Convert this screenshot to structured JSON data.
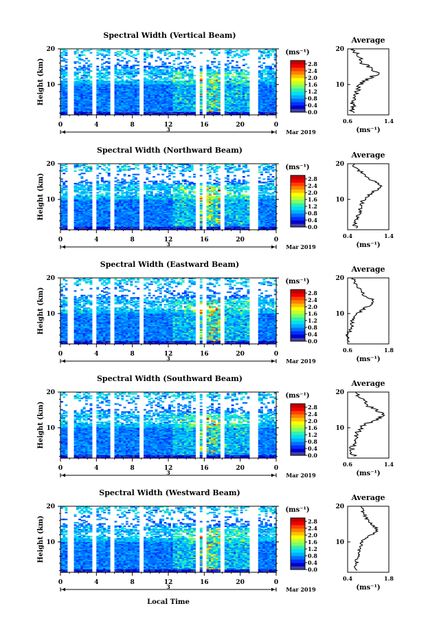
{
  "figure": {
    "xlabel": "Local Time",
    "month_label": "Mar 2019",
    "day_label": "3",
    "xticks": [
      "0",
      "4",
      "8",
      "12",
      "16",
      "20",
      "0"
    ],
    "ylabel": "Height (km)",
    "yticks": [
      "20",
      "10"
    ],
    "colorbar": {
      "unit": "(ms⁻¹)",
      "ticks": [
        "2.8",
        "2.4",
        "2.0",
        "1.6",
        "1.2",
        "0.8",
        "0.4",
        "0.0"
      ],
      "colors": [
        "#4040a0",
        "#0000c8",
        "#0030ff",
        "#0070ff",
        "#00b0ff",
        "#00e0f0",
        "#30f0b0",
        "#80ff60",
        "#c0ff30",
        "#ffff00",
        "#ffc000",
        "#ff8000",
        "#ff4000",
        "#f00000",
        "#c00000"
      ]
    },
    "average_title": "Average",
    "average_xlabel": "(ms⁻¹)",
    "average_yticks": [
      "20",
      "10"
    ]
  },
  "chart_data": [
    {
      "type": "heatmap",
      "title": "Spectral Width (Vertical Beam)",
      "xlabel": "Local Time",
      "ylabel": "Height (km)",
      "ylim": [
        1.5,
        20
      ],
      "colorbar_range": [
        0.0,
        3.0
      ],
      "average_profile": {
        "xticks": [
          "0.6",
          "1.4"
        ],
        "xlim": [
          0.6,
          1.4
        ],
        "heights": [
          2,
          3,
          4,
          5,
          6,
          7,
          8,
          9,
          10,
          11,
          12,
          13,
          14,
          15,
          16,
          17,
          18,
          19,
          20
        ],
        "values": [
          0.7,
          0.68,
          0.72,
          0.7,
          0.75,
          0.72,
          0.78,
          0.8,
          0.85,
          0.9,
          1.05,
          1.2,
          1.1,
          1.0,
          0.9,
          0.85,
          0.8,
          0.75,
          0.72
        ]
      }
    },
    {
      "type": "heatmap",
      "title": "Spectral Width (Northward Beam)",
      "xlabel": "Local Time",
      "ylabel": "Height (km)",
      "ylim": [
        1.5,
        20
      ],
      "colorbar_range": [
        0.0,
        3.0
      ],
      "average_profile": {
        "xticks": [
          "0.4",
          "1.4"
        ],
        "xlim": [
          0.4,
          1.4
        ],
        "heights": [
          2,
          3,
          4,
          5,
          6,
          7,
          8,
          9,
          10,
          11,
          12,
          13,
          14,
          15,
          16,
          17,
          18,
          19,
          20
        ],
        "values": [
          0.6,
          0.58,
          0.62,
          0.65,
          0.68,
          0.7,
          0.72,
          0.75,
          0.8,
          0.9,
          1.0,
          1.15,
          1.2,
          1.05,
          0.9,
          0.8,
          0.7,
          0.6,
          0.55
        ]
      }
    },
    {
      "type": "heatmap",
      "title": "Spectral Width (Eastward Beam)",
      "xlabel": "Local Time",
      "ylabel": "Height (km)",
      "ylim": [
        1.5,
        20
      ],
      "colorbar_range": [
        0.0,
        3.0
      ],
      "average_profile": {
        "xticks": [
          "0.6",
          "1.8"
        ],
        "xlim": [
          0.6,
          1.8
        ],
        "heights": [
          2,
          3,
          4,
          5,
          6,
          7,
          8,
          9,
          10,
          11,
          12,
          13,
          14,
          15,
          16,
          17,
          18,
          19,
          20
        ],
        "values": [
          0.65,
          0.62,
          0.6,
          0.65,
          0.7,
          0.72,
          0.75,
          0.8,
          0.9,
          1.0,
          1.2,
          1.35,
          1.3,
          1.1,
          1.0,
          0.95,
          0.85,
          0.8,
          0.75
        ]
      }
    },
    {
      "type": "heatmap",
      "title": "Spectral Width (Southward Beam)",
      "xlabel": "Local Time",
      "ylabel": "Height (km)",
      "ylim": [
        1.5,
        20
      ],
      "colorbar_range": [
        0.0,
        3.0
      ],
      "average_profile": {
        "xticks": [
          "0.6",
          "1.4"
        ],
        "xlim": [
          0.6,
          1.4
        ],
        "heights": [
          2,
          3,
          4,
          5,
          6,
          7,
          8,
          9,
          10,
          11,
          12,
          13,
          14,
          15,
          16,
          17,
          18,
          19,
          20
        ],
        "values": [
          0.72,
          0.7,
          0.68,
          0.7,
          0.72,
          0.75,
          0.78,
          0.8,
          0.85,
          0.95,
          1.1,
          1.25,
          1.3,
          1.15,
          1.0,
          0.95,
          0.9,
          0.8,
          0.75
        ]
      }
    },
    {
      "type": "heatmap",
      "title": "Spectral Width (Westward Beam)",
      "xlabel": "Local Time",
      "ylabel": "Height (km)",
      "ylim": [
        1.5,
        20
      ],
      "colorbar_range": [
        0.0,
        3.0
      ],
      "average_profile": {
        "xticks": [
          "0.4",
          "1.8"
        ],
        "xlim": [
          0.4,
          1.8
        ],
        "heights": [
          2,
          3,
          4,
          5,
          6,
          7,
          8,
          9,
          10,
          11,
          12,
          13,
          14,
          15,
          16,
          17,
          18,
          19,
          20
        ],
        "values": [
          0.7,
          0.68,
          0.72,
          0.7,
          0.75,
          0.78,
          0.8,
          0.85,
          0.9,
          1.0,
          1.2,
          1.4,
          1.35,
          1.2,
          1.1,
          1.0,
          0.95,
          0.9,
          0.85
        ]
      }
    }
  ]
}
